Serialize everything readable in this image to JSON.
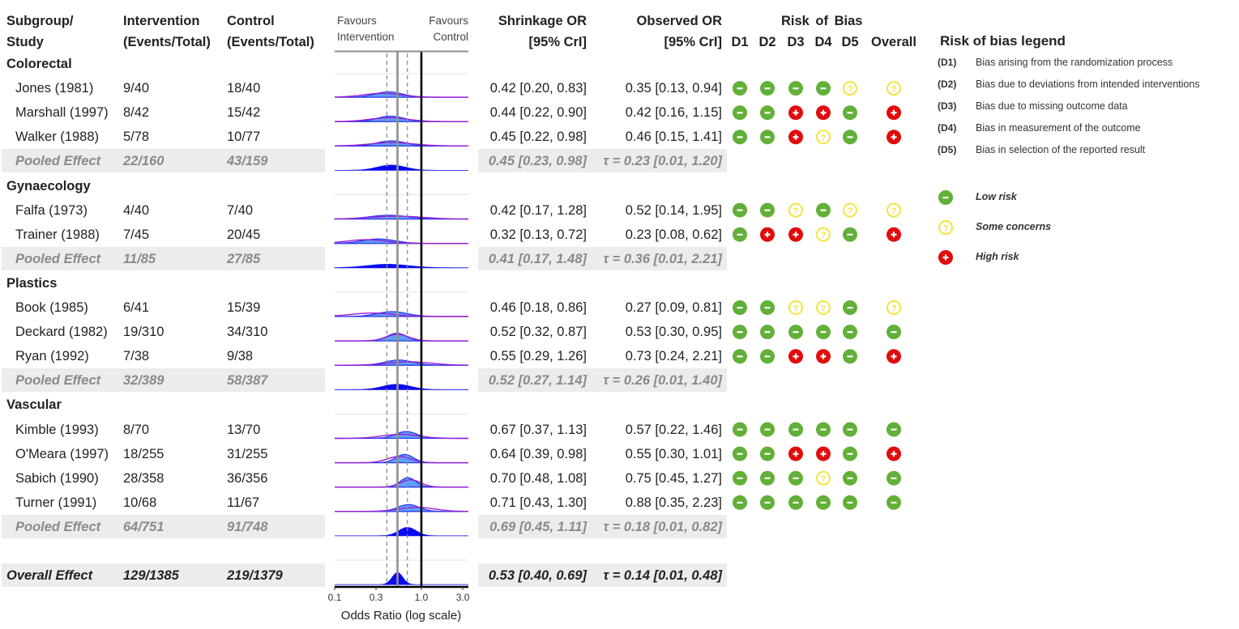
{
  "headers": {
    "study": [
      "Subgroup/",
      "Study"
    ],
    "intervention": [
      "Intervention",
      "(Events/Total)"
    ],
    "control": [
      "Control",
      "(Events/Total)"
    ],
    "favours_left": [
      "Favours",
      "Intervention"
    ],
    "favours_right": [
      "Favours",
      "Control"
    ],
    "shrinkage": [
      "Shrinkage OR",
      "[95% CrI]"
    ],
    "observed": [
      "Observed OR",
      "[95% CrI]"
    ],
    "rob_title": "Risk of Bias",
    "rob_domains": [
      "D1",
      "D2",
      "D3",
      "D4",
      "D5",
      "Overall"
    ]
  },
  "rows": [
    {
      "type": "group",
      "label": "Colorectal"
    },
    {
      "type": "study",
      "label": "Jones (1981)",
      "intervention": "9/40",
      "control": "18/40",
      "shrinkage": "0.42 [0.20, 0.83]",
      "observed": "0.35 [0.13, 0.94]",
      "rob": [
        "low",
        "low",
        "low",
        "low",
        "some",
        "some"
      ]
    },
    {
      "type": "study",
      "label": "Marshall (1997)",
      "intervention": "8/42",
      "control": "15/42",
      "shrinkage": "0.44 [0.22, 0.90]",
      "observed": "0.42 [0.16, 1.15]",
      "rob": [
        "low",
        "low",
        "high",
        "high",
        "low",
        "high"
      ]
    },
    {
      "type": "study",
      "label": "Walker (1988)",
      "intervention": "5/78",
      "control": "10/77",
      "shrinkage": "0.45 [0.22, 0.98]",
      "observed": "0.46 [0.15, 1.41]",
      "rob": [
        "low",
        "low",
        "high",
        "some",
        "low",
        "high"
      ]
    },
    {
      "type": "pooled",
      "label": "Pooled Effect",
      "intervention": "22/160",
      "control": "43/159",
      "shrinkage": "0.45 [0.23, 0.98]",
      "observed": "τ = 0.23 [0.01, 1.20]"
    },
    {
      "type": "group",
      "label": "Gynaecology"
    },
    {
      "type": "study",
      "label": "Falfa (1973)",
      "intervention": "4/40",
      "control": "7/40",
      "shrinkage": "0.42 [0.17, 1.28]",
      "observed": "0.52 [0.14, 1.95]",
      "rob": [
        "low",
        "low",
        "some",
        "low",
        "some",
        "some"
      ]
    },
    {
      "type": "study",
      "label": "Trainer (1988)",
      "intervention": "7/45",
      "control": "20/45",
      "shrinkage": "0.32 [0.13, 0.72]",
      "observed": "0.23 [0.08, 0.62]",
      "rob": [
        "low",
        "high",
        "high",
        "some",
        "low",
        "high"
      ]
    },
    {
      "type": "pooled",
      "label": "Pooled Effect",
      "intervention": "11/85",
      "control": "27/85",
      "shrinkage": "0.41 [0.17, 1.48]",
      "observed": "τ = 0.36 [0.01, 2.21]"
    },
    {
      "type": "group",
      "label": "Plastics"
    },
    {
      "type": "study",
      "label": "Book (1985)",
      "intervention": "6/41",
      "control": "15/39",
      "shrinkage": "0.46 [0.18, 0.86]",
      "observed": "0.27 [0.09, 0.81]",
      "rob": [
        "low",
        "low",
        "some",
        "some",
        "low",
        "some"
      ]
    },
    {
      "type": "study",
      "label": "Deckard (1982)",
      "intervention": "19/310",
      "control": "34/310",
      "shrinkage": "0.52 [0.32, 0.87]",
      "observed": "0.53 [0.30, 0.95]",
      "rob": [
        "low",
        "low",
        "low",
        "low",
        "low",
        "low"
      ]
    },
    {
      "type": "study",
      "label": "Ryan (1992)",
      "intervention": "7/38",
      "control": "9/38",
      "shrinkage": "0.55 [0.29, 1.26]",
      "observed": "0.73 [0.24, 2.21]",
      "rob": [
        "low",
        "low",
        "high",
        "high",
        "low",
        "high"
      ]
    },
    {
      "type": "pooled",
      "label": "Pooled Effect",
      "intervention": "32/389",
      "control": "58/387",
      "shrinkage": "0.52 [0.27, 1.14]",
      "observed": "τ = 0.26 [0.01, 1.40]"
    },
    {
      "type": "group",
      "label": "Vascular"
    },
    {
      "type": "study",
      "label": "Kimble (1993)",
      "intervention": "8/70",
      "control": "13/70",
      "shrinkage": "0.67 [0.37, 1.13]",
      "observed": "0.57 [0.22, 1.46]",
      "rob": [
        "low",
        "low",
        "low",
        "low",
        "low",
        "low"
      ]
    },
    {
      "type": "study",
      "label": "O'Meara (1997)",
      "intervention": "18/255",
      "control": "31/255",
      "shrinkage": "0.64 [0.39, 0.98]",
      "observed": "0.55 [0.30, 1.01]",
      "rob": [
        "low",
        "low",
        "high",
        "high",
        "low",
        "high"
      ]
    },
    {
      "type": "study",
      "label": "Sabich (1990)",
      "intervention": "28/358",
      "control": "36/356",
      "shrinkage": "0.70 [0.48, 1.08]",
      "observed": "0.75 [0.45, 1.27]",
      "rob": [
        "low",
        "low",
        "low",
        "some",
        "low",
        "low"
      ]
    },
    {
      "type": "study",
      "label": "Turner (1991)",
      "intervention": "10/68",
      "control": "11/67",
      "shrinkage": "0.71 [0.43, 1.30]",
      "observed": "0.88 [0.35, 2.23]",
      "rob": [
        "low",
        "low",
        "low",
        "low",
        "low",
        "low"
      ]
    },
    {
      "type": "pooled",
      "label": "Pooled Effect",
      "intervention": "64/751",
      "control": "91/748",
      "shrinkage": "0.69 [0.45, 1.11]",
      "observed": "τ = 0.18 [0.01, 0.82]"
    },
    {
      "type": "blank"
    },
    {
      "type": "overall",
      "label": "Overall Effect",
      "intervention": "129/1385",
      "control": "219/1379",
      "shrinkage": "0.53 [0.40, 0.69]",
      "observed": "τ = 0.14 [0.01, 0.48]"
    }
  ],
  "legend": {
    "title": "Risk of bias legend",
    "domains": [
      {
        "code": "(D1)",
        "text": "Bias arising from the randomization process"
      },
      {
        "code": "(D2)",
        "text": "Bias due to deviations from intended interventions"
      },
      {
        "code": "(D3)",
        "text": "Bias due to missing outcome data"
      },
      {
        "code": "(D4)",
        "text": "Bias in measurement of the outcome"
      },
      {
        "code": "(D5)",
        "text": "Bias in selection of the reported result"
      }
    ],
    "judgements": [
      {
        "key": "low",
        "label": "Low risk"
      },
      {
        "key": "some",
        "label": "Some concerns"
      },
      {
        "key": "high",
        "label": "High risk"
      }
    ]
  },
  "colors": {
    "low": "#62b038",
    "some": "#f2e440",
    "high": "#e00d0d",
    "shrinkage_fill": "#5da0f5",
    "shrinkage_line": "#2c39f0",
    "observed_line": "#9b1bd6",
    "pooled_fill": "#0a0af2",
    "pooled_bg": "#ececec"
  },
  "chart_data": {
    "type": "area",
    "title": "",
    "xlabel": "Odds Ratio (log scale)",
    "x_scale": "log",
    "xlim": [
      0.1,
      3.5
    ],
    "x_ticks": [
      0.1,
      0.3,
      1.0,
      3.0
    ],
    "x_tick_labels": [
      "0.1",
      "0.3",
      "1.0",
      "3.0"
    ],
    "reference_lines": {
      "null_effect": 1.0,
      "overall_estimate": 0.53,
      "overall_ci": [
        0.4,
        0.69
      ]
    },
    "series": [
      {
        "name": "Shrinkage posterior",
        "style": "filled density"
      },
      {
        "name": "Observed estimate",
        "style": "line density"
      },
      {
        "name": "Pooled posterior",
        "style": "solid filled density"
      }
    ],
    "densities": [
      {
        "row": "Jones (1981)",
        "shrinkage": [
          0.42,
          0.2,
          0.83
        ],
        "observed": [
          0.35,
          0.13,
          0.94
        ]
      },
      {
        "row": "Marshall (1997)",
        "shrinkage": [
          0.44,
          0.22,
          0.9
        ],
        "observed": [
          0.42,
          0.16,
          1.15
        ]
      },
      {
        "row": "Walker (1988)",
        "shrinkage": [
          0.45,
          0.22,
          0.98
        ],
        "observed": [
          0.46,
          0.15,
          1.41
        ]
      },
      {
        "row": "Colorectal Pooled",
        "pooled": [
          0.45,
          0.23,
          0.98
        ]
      },
      {
        "row": "Falfa (1973)",
        "shrinkage": [
          0.42,
          0.17,
          1.28
        ],
        "observed": [
          0.52,
          0.14,
          1.95
        ]
      },
      {
        "row": "Trainer (1988)",
        "shrinkage": [
          0.32,
          0.13,
          0.72
        ],
        "observed": [
          0.23,
          0.08,
          0.62
        ]
      },
      {
        "row": "Gynaecology Pooled",
        "pooled": [
          0.41,
          0.17,
          1.48
        ]
      },
      {
        "row": "Book (1985)",
        "shrinkage": [
          0.46,
          0.18,
          0.86
        ],
        "observed": [
          0.27,
          0.09,
          0.81
        ]
      },
      {
        "row": "Deckard (1982)",
        "shrinkage": [
          0.52,
          0.32,
          0.87
        ],
        "observed": [
          0.53,
          0.3,
          0.95
        ]
      },
      {
        "row": "Ryan (1992)",
        "shrinkage": [
          0.55,
          0.29,
          1.26
        ],
        "observed": [
          0.73,
          0.24,
          2.21
        ]
      },
      {
        "row": "Plastics Pooled",
        "pooled": [
          0.52,
          0.27,
          1.14
        ]
      },
      {
        "row": "Kimble (1993)",
        "shrinkage": [
          0.67,
          0.37,
          1.13
        ],
        "observed": [
          0.57,
          0.22,
          1.46
        ]
      },
      {
        "row": "O'Meara (1997)",
        "shrinkage": [
          0.64,
          0.39,
          0.98
        ],
        "observed": [
          0.55,
          0.3,
          1.01
        ]
      },
      {
        "row": "Sabich (1990)",
        "shrinkage": [
          0.7,
          0.48,
          1.08
        ],
        "observed": [
          0.75,
          0.45,
          1.27
        ]
      },
      {
        "row": "Turner (1991)",
        "shrinkage": [
          0.71,
          0.43,
          1.3
        ],
        "observed": [
          0.88,
          0.35,
          2.23
        ]
      },
      {
        "row": "Vascular Pooled",
        "pooled": [
          0.69,
          0.45,
          1.11
        ]
      },
      {
        "row": "Overall Effect",
        "pooled": [
          0.53,
          0.4,
          0.69
        ]
      }
    ]
  }
}
